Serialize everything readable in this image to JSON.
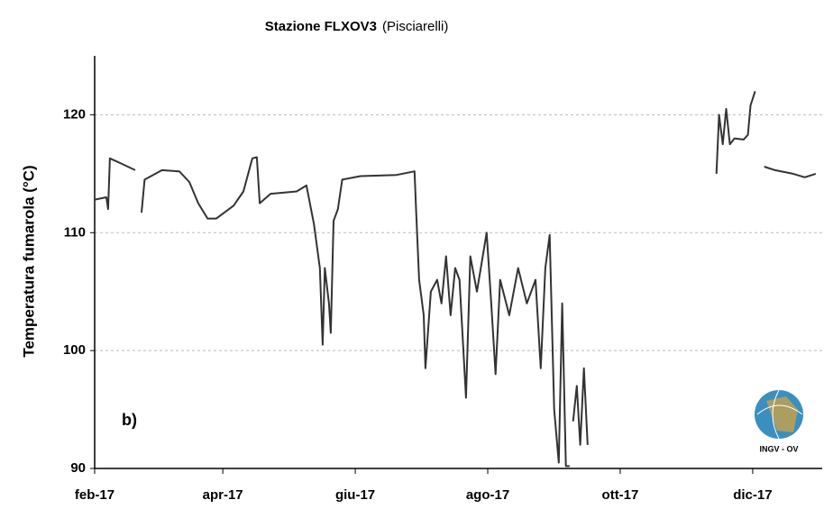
{
  "chart_data": {
    "type": "line",
    "title": "Stazione FLXOV3",
    "subtitle": "(Pisciarelli)",
    "y_label": "Temperatura fumarola  (°C)",
    "annotation": "b)",
    "logo": "INGV - OV",
    "color": "#333333",
    "grid": true,
    "x": [
      32,
      37.4,
      38.2,
      39,
      45,
      50.7,
      null,
      53.6,
      55,
      63,
      71,
      75.6,
      79.7,
      84,
      88,
      96,
      100.5,
      104.6,
      106.7,
      108,
      113,
      125,
      129.5,
      133,
      135.7,
      137,
      138,
      139.9,
      140.7,
      142,
      144,
      146,
      154.4,
      171,
      179.3,
      180,
      181.4,
      183.5,
      184.3,
      186.8,
      189.7,
      191.7,
      193.8,
      195.9,
      198,
      200,
      203,
      205,
      208,
      212.5,
      214.6,
      216.6,
      218.7,
      222.9,
      227,
      231,
      235,
      237.4,
      239.5,
      241.5,
      243.6,
      245.7,
      247.3,
      249,
      250.7,
      null,
      252.3,
      254,
      255.6,
      257.3,
      259,
      null,
      318.3,
      319.5,
      321.2,
      322.8,
      324.5,
      326.6,
      330.8,
      332.8,
      334,
      336.1,
      null,
      340.3,
      345.3,
      353.6,
      359,
      364
    ],
    "values": [
      112.8,
      113,
      112,
      116.3,
      115.8,
      115.3,
      null,
      111.7,
      114.5,
      115.3,
      115.2,
      114.3,
      112.5,
      111.2,
      111.2,
      112.3,
      113.5,
      116.3,
      116.4,
      112.5,
      113.3,
      113.5,
      114,
      110.7,
      107,
      100.5,
      107,
      104,
      101.5,
      111,
      112,
      114.5,
      114.8,
      114.9,
      115.2,
      112,
      106,
      103,
      98.5,
      105,
      106,
      104,
      108,
      103,
      107,
      106,
      96,
      108,
      105,
      110,
      104,
      98,
      106,
      103,
      107,
      104,
      106,
      98.5,
      107,
      109.8,
      95,
      90.5,
      104,
      90.2,
      90.2,
      null,
      94,
      97,
      92,
      98.5,
      92,
      null,
      115,
      120,
      117.5,
      120.5,
      117.5,
      118,
      117.9,
      118.3,
      120.8,
      122,
      null,
      115.6,
      115.3,
      115,
      114.7,
      115
    ],
    "xlim": [
      32,
      367
    ],
    "xticks": [
      {
        "value": 32,
        "label": "feb-17"
      },
      {
        "value": 91,
        "label": "apr-17"
      },
      {
        "value": 152,
        "label": "giu-17"
      },
      {
        "value": 213,
        "label": "ago-17"
      },
      {
        "value": 274,
        "label": "ott-17"
      },
      {
        "value": 335,
        "label": "dic-17"
      }
    ],
    "ylim": [
      90,
      125
    ],
    "yticks": [
      90,
      100,
      110,
      120
    ]
  }
}
